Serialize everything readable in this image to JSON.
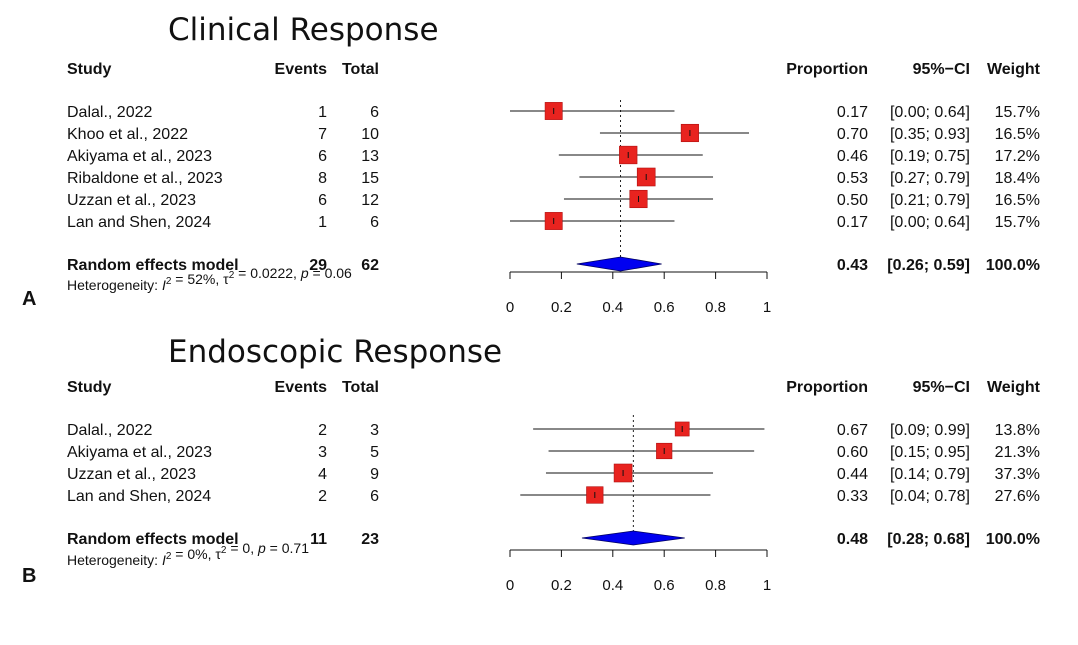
{
  "chart_data": [
    {
      "type": "forest",
      "panel_label": "A",
      "title": "Clinical Response",
      "headers": {
        "study": "Study",
        "events": "Events",
        "total": "Total",
        "proportion": "Proportion",
        "ci": "95%−CI",
        "weight": "Weight"
      },
      "studies": [
        {
          "study": "Dalal., 2022",
          "events": "1",
          "total": "6",
          "prop": 0.17,
          "lo": 0.0,
          "hi": 0.64,
          "prop_text": "0.17",
          "ci_text": "[0.00; 0.64]",
          "weight_text": "15.7%"
        },
        {
          "study": "Khoo et al., 2022",
          "events": "7",
          "total": "10",
          "prop": 0.7,
          "lo": 0.35,
          "hi": 0.93,
          "prop_text": "0.70",
          "ci_text": "[0.35; 0.93]",
          "weight_text": "16.5%"
        },
        {
          "study": "Akiyama et al., 2023",
          "events": "6",
          "total": "13",
          "prop": 0.46,
          "lo": 0.19,
          "hi": 0.75,
          "prop_text": "0.46",
          "ci_text": "[0.19; 0.75]",
          "weight_text": "17.2%"
        },
        {
          "study": "Ribaldone et al., 2023",
          "events": "8",
          "total": "15",
          "prop": 0.53,
          "lo": 0.27,
          "hi": 0.79,
          "prop_text": "0.53",
          "ci_text": "[0.27; 0.79]",
          "weight_text": "18.4%"
        },
        {
          "study": "Uzzan et al., 2023",
          "events": "6",
          "total": "12",
          "prop": 0.5,
          "lo": 0.21,
          "hi": 0.79,
          "prop_text": "0.50",
          "ci_text": "[0.21; 0.79]",
          "weight_text": "16.5%"
        },
        {
          "study": "Lan and Shen, 2024",
          "events": "1",
          "total": "6",
          "prop": 0.17,
          "lo": 0.0,
          "hi": 0.64,
          "prop_text": "0.17",
          "ci_text": "[0.00; 0.64]",
          "weight_text": "15.7%"
        }
      ],
      "summary": {
        "label": "Random effects model",
        "events": "29",
        "total": "62",
        "prop": 0.43,
        "lo": 0.26,
        "hi": 0.59,
        "prop_text": "0.43",
        "ci_text": "[0.26; 0.59]",
        "weight_text": "100.0%"
      },
      "heterogeneity": {
        "prefix": "Heterogeneity: ",
        "i2": "52%",
        "tau2": "0.0222",
        "p": "0.06"
      },
      "xlim": [
        0,
        1
      ],
      "xticks": [
        "0",
        "0.2",
        "0.4",
        "0.6",
        "0.8",
        "1"
      ],
      "box_color": "#e8231f",
      "diamond_color": "#0000f0"
    },
    {
      "type": "forest",
      "panel_label": "B",
      "title": "Endoscopic Response",
      "headers": {
        "study": "Study",
        "events": "Events",
        "total": "Total",
        "proportion": "Proportion",
        "ci": "95%−CI",
        "weight": "Weight"
      },
      "studies": [
        {
          "study": "Dalal., 2022",
          "events": "2",
          "total": "3",
          "prop": 0.67,
          "lo": 0.09,
          "hi": 0.99,
          "prop_text": "0.67",
          "ci_text": "[0.09; 0.99]",
          "weight_text": "13.8%"
        },
        {
          "study": "Akiyama et al., 2023",
          "events": "3",
          "total": "5",
          "prop": 0.6,
          "lo": 0.15,
          "hi": 0.95,
          "prop_text": "0.60",
          "ci_text": "[0.15; 0.95]",
          "weight_text": "21.3%"
        },
        {
          "study": "Uzzan et al., 2023",
          "events": "4",
          "total": "9",
          "prop": 0.44,
          "lo": 0.14,
          "hi": 0.79,
          "prop_text": "0.44",
          "ci_text": "[0.14; 0.79]",
          "weight_text": "37.3%"
        },
        {
          "study": "Lan and Shen, 2024",
          "events": "2",
          "total": "6",
          "prop": 0.33,
          "lo": 0.04,
          "hi": 0.78,
          "prop_text": "0.33",
          "ci_text": "[0.04; 0.78]",
          "weight_text": "27.6%"
        }
      ],
      "summary": {
        "label": "Random effects model",
        "events": "11",
        "total": "23",
        "prop": 0.48,
        "lo": 0.28,
        "hi": 0.68,
        "prop_text": "0.48",
        "ci_text": "[0.28; 0.68]",
        "weight_text": "100.0%"
      },
      "heterogeneity": {
        "prefix": "Heterogeneity: ",
        "i2": "0%",
        "tau2": "0",
        "p": "0.71"
      },
      "xlim": [
        0,
        1
      ],
      "xticks": [
        "0",
        "0.2",
        "0.4",
        "0.6",
        "0.8",
        "1"
      ],
      "box_color": "#e8231f",
      "diamond_color": "#0000f0"
    }
  ]
}
